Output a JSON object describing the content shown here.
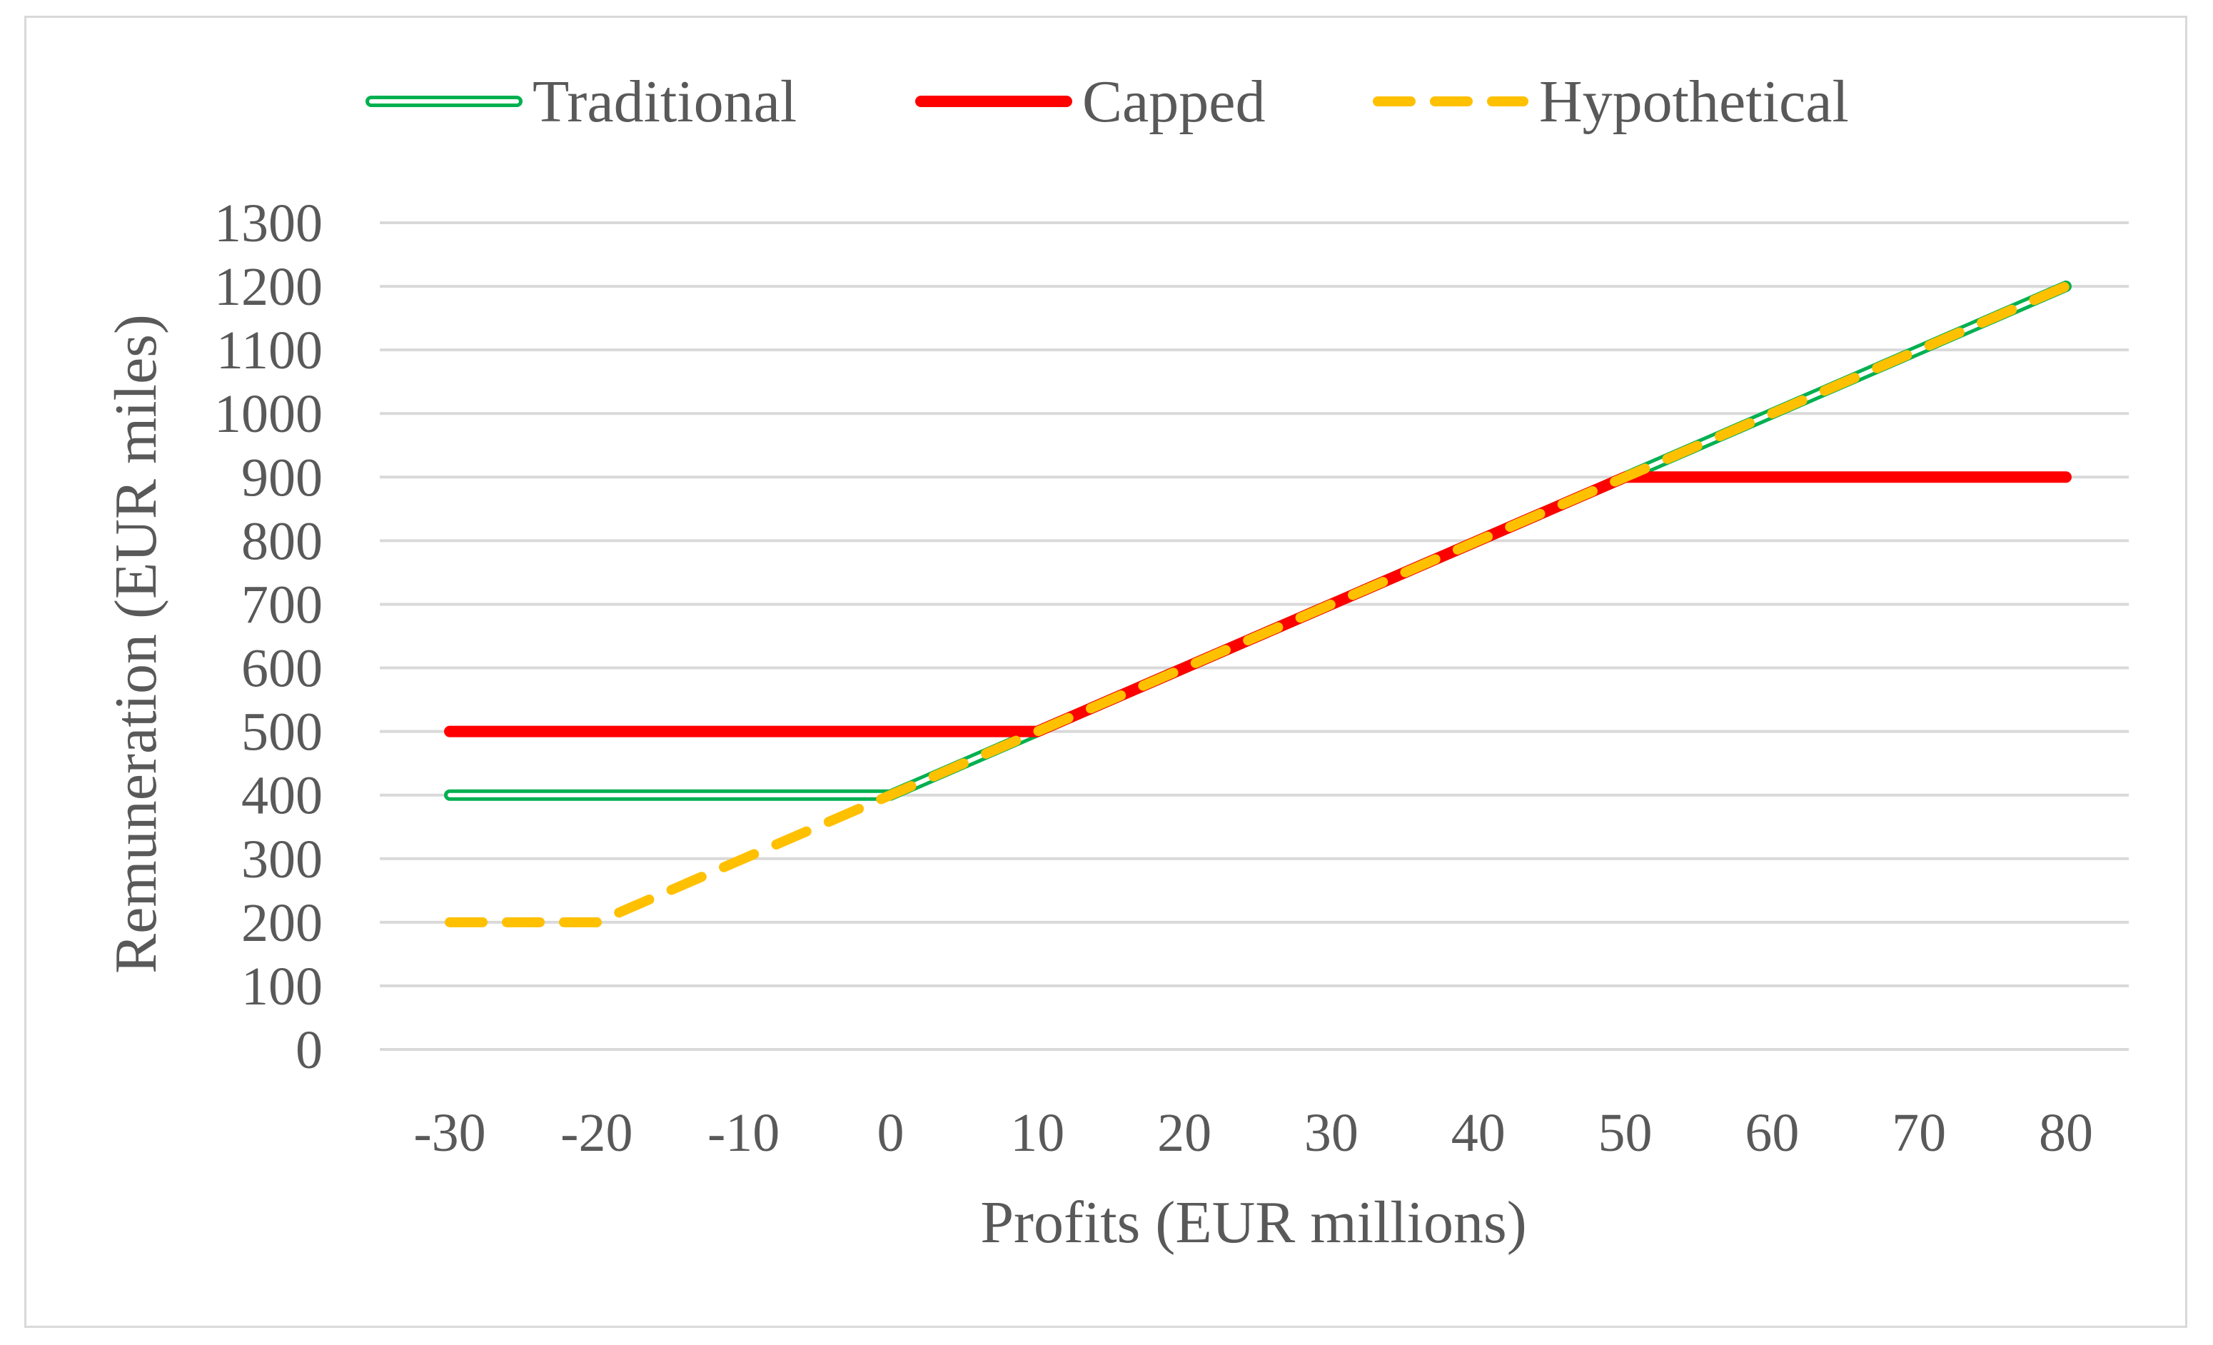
{
  "chart_data": {
    "type": "line",
    "title": "",
    "xlabel": "Profits (EUR millions)",
    "ylabel": "Remuneration (EUR miles)",
    "x": [
      -30,
      -20,
      -10,
      0,
      10,
      20,
      30,
      40,
      50,
      60,
      70,
      80
    ],
    "xlim": [
      -30,
      80
    ],
    "ylim": [
      0,
      1300
    ],
    "y_ticks": [
      0,
      100,
      200,
      300,
      400,
      500,
      600,
      700,
      800,
      900,
      1000,
      1100,
      1200,
      1300
    ],
    "grid": true,
    "legend_position": "top",
    "series": [
      {
        "name": "Traditional",
        "color": "#00b050",
        "style": "double",
        "points": [
          [
            -30,
            400
          ],
          [
            0,
            400
          ],
          [
            80,
            1200
          ]
        ]
      },
      {
        "name": "Capped",
        "color": "#ff0000",
        "style": "solid",
        "points": [
          [
            -30,
            500
          ],
          [
            10,
            500
          ],
          [
            50,
            900
          ],
          [
            80,
            900
          ]
        ]
      },
      {
        "name": "Hypothetical",
        "color": "#ffc000",
        "style": "dashed",
        "points": [
          [
            -30,
            200
          ],
          [
            -20,
            200
          ],
          [
            0,
            400
          ],
          [
            80,
            1200
          ]
        ]
      }
    ]
  }
}
